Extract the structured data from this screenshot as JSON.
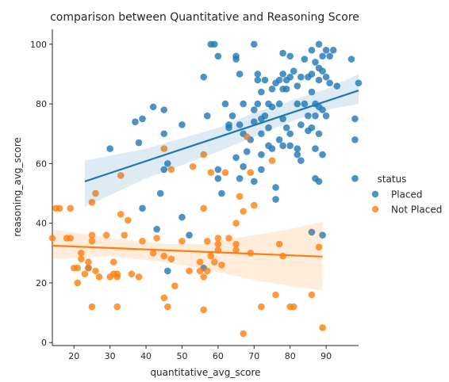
{
  "chart_data": {
    "type": "scatter",
    "title": "comparison between Quantitative and Reasoning Score",
    "xlabel": "quantitative_avg_score",
    "ylabel": "reasoning_avg_score",
    "xlim": [
      14,
      99
    ],
    "ylim": [
      -1,
      105
    ],
    "xticks": [
      20,
      30,
      40,
      50,
      60,
      70,
      80,
      90
    ],
    "yticks": [
      0,
      20,
      40,
      60,
      80,
      100
    ],
    "grid": false,
    "legend": {
      "title": "status",
      "placement": "right"
    },
    "series": [
      {
        "name": "Placed",
        "color": "#1f77b4",
        "regression": {
          "x0": 23,
          "y0": 54,
          "x1": 99,
          "y1": 84.5
        },
        "ci_band": {
          "x": [
            23,
            40,
            60,
            70,
            80,
            90,
            99
          ],
          "upper": [
            61,
            65,
            72,
            77,
            81,
            85,
            90
          ],
          "lower": [
            45.5,
            55,
            64,
            69,
            74,
            78,
            80
          ]
        },
        "points": [
          [
            30,
            65
          ],
          [
            38,
            67
          ],
          [
            39,
            75
          ],
          [
            37,
            74
          ],
          [
            39,
            45
          ],
          [
            42,
            79
          ],
          [
            44,
            50
          ],
          [
            45,
            58
          ],
          [
            45,
            78
          ],
          [
            46,
            60
          ],
          [
            45,
            70
          ],
          [
            46,
            24
          ],
          [
            50,
            73
          ],
          [
            50,
            42
          ],
          [
            52,
            36
          ],
          [
            56,
            89
          ],
          [
            56,
            25
          ],
          [
            58,
            100
          ],
          [
            59,
            100
          ],
          [
            60,
            96
          ],
          [
            60,
            58
          ],
          [
            60,
            55
          ],
          [
            61,
            50
          ],
          [
            62,
            80
          ],
          [
            63,
            72
          ],
          [
            63,
            73
          ],
          [
            64,
            76
          ],
          [
            65,
            96
          ],
          [
            65,
            62
          ],
          [
            65,
            95
          ],
          [
            66,
            90
          ],
          [
            66,
            73
          ],
          [
            67,
            80
          ],
          [
            66,
            55
          ],
          [
            67,
            70
          ],
          [
            67,
            59
          ],
          [
            68,
            64
          ],
          [
            69,
            68
          ],
          [
            70,
            100
          ],
          [
            70,
            78
          ],
          [
            70,
            74
          ],
          [
            70,
            54
          ],
          [
            71,
            90
          ],
          [
            71,
            88
          ],
          [
            71,
            80
          ],
          [
            72,
            84
          ],
          [
            72,
            70
          ],
          [
            72,
            63
          ],
          [
            72,
            58
          ],
          [
            73,
            88
          ],
          [
            73,
            76
          ],
          [
            74,
            80
          ],
          [
            74,
            72
          ],
          [
            74,
            66
          ],
          [
            75,
            85
          ],
          [
            75,
            79
          ],
          [
            75,
            65
          ],
          [
            76,
            52
          ],
          [
            76,
            87
          ],
          [
            77,
            88
          ],
          [
            77,
            80
          ],
          [
            77,
            68
          ],
          [
            78,
            97
          ],
          [
            78,
            90
          ],
          [
            78,
            85
          ],
          [
            78,
            75
          ],
          [
            78,
            66
          ],
          [
            79,
            88
          ],
          [
            79,
            85
          ],
          [
            79,
            72
          ],
          [
            80,
            96
          ],
          [
            80,
            70
          ],
          [
            80,
            89
          ],
          [
            80,
            66
          ],
          [
            81,
            91
          ],
          [
            82,
            86
          ],
          [
            82,
            80
          ],
          [
            82,
            65
          ],
          [
            82,
            63
          ],
          [
            83,
            89
          ],
          [
            83,
            73
          ],
          [
            84,
            95
          ],
          [
            84,
            80
          ],
          [
            85,
            89
          ],
          [
            85,
            76
          ],
          [
            85,
            71
          ],
          [
            86,
            98
          ],
          [
            86,
            90
          ],
          [
            86,
            84
          ],
          [
            86,
            72
          ],
          [
            87,
            94
          ],
          [
            87,
            80
          ],
          [
            87,
            76
          ],
          [
            87,
            65
          ],
          [
            87,
            55
          ],
          [
            88,
            100
          ],
          [
            88,
            92
          ],
          [
            88,
            88
          ],
          [
            88,
            79
          ],
          [
            88,
            70
          ],
          [
            88,
            54
          ],
          [
            89,
            96
          ],
          [
            89,
            91
          ],
          [
            89,
            78
          ],
          [
            89,
            63
          ],
          [
            89,
            36
          ],
          [
            90,
            98
          ],
          [
            90,
            89
          ],
          [
            90,
            76
          ],
          [
            91,
            96
          ],
          [
            91,
            87
          ],
          [
            92,
            98
          ],
          [
            93,
            86
          ],
          [
            97,
            95
          ],
          [
            98,
            75
          ],
          [
            98,
            68
          ],
          [
            98,
            55
          ],
          [
            99,
            87
          ],
          [
            24,
            25
          ],
          [
            43,
            38
          ],
          [
            57,
            76
          ],
          [
            72,
            75
          ],
          [
            76,
            48
          ],
          [
            83,
            61
          ],
          [
            86,
            37
          ]
        ]
      },
      {
        "name": "Not Placed",
        "color": "#ff7f0e",
        "regression": {
          "x0": 14,
          "y0": 32.5,
          "x1": 89,
          "y1": 28.8
        },
        "ci_band": {
          "x": [
            14,
            30,
            45,
            55,
            70,
            80,
            89
          ],
          "upper": [
            38,
            35,
            33,
            33,
            36,
            38,
            40.5
          ],
          "lower": [
            28,
            29,
            27,
            25,
            21,
            19,
            17.5
          ]
        },
        "points": [
          [
            14,
            35
          ],
          [
            15,
            45
          ],
          [
            16,
            45
          ],
          [
            18,
            35
          ],
          [
            19,
            35
          ],
          [
            19,
            45
          ],
          [
            20,
            25
          ],
          [
            21,
            20
          ],
          [
            21,
            25
          ],
          [
            22,
            30
          ],
          [
            22,
            28
          ],
          [
            23,
            23
          ],
          [
            24,
            27
          ],
          [
            24,
            25
          ],
          [
            25,
            36
          ],
          [
            25,
            47
          ],
          [
            25,
            12
          ],
          [
            26,
            50
          ],
          [
            26,
            24
          ],
          [
            27,
            22
          ],
          [
            29,
            36
          ],
          [
            30,
            22
          ],
          [
            31,
            27
          ],
          [
            31,
            23
          ],
          [
            32,
            12
          ],
          [
            32,
            23
          ],
          [
            32,
            22
          ],
          [
            33,
            43
          ],
          [
            33,
            56
          ],
          [
            34,
            36
          ],
          [
            35,
            41
          ],
          [
            36,
            23
          ],
          [
            38,
            22
          ],
          [
            39,
            34
          ],
          [
            42,
            30
          ],
          [
            43,
            35
          ],
          [
            45,
            15
          ],
          [
            45,
            29
          ],
          [
            45,
            65
          ],
          [
            46,
            12
          ],
          [
            47,
            28
          ],
          [
            47,
            58
          ],
          [
            48,
            19
          ],
          [
            50,
            34
          ],
          [
            52,
            24
          ],
          [
            53,
            59
          ],
          [
            55,
            27
          ],
          [
            55,
            24
          ],
          [
            56,
            11
          ],
          [
            56,
            45
          ],
          [
            56,
            22
          ],
          [
            56,
            63
          ],
          [
            57,
            34
          ],
          [
            57,
            24
          ],
          [
            58,
            29
          ],
          [
            58,
            57
          ],
          [
            59,
            27
          ],
          [
            60,
            35
          ],
          [
            60,
            33
          ],
          [
            60,
            31
          ],
          [
            61,
            26
          ],
          [
            62,
            57
          ],
          [
            63,
            35
          ],
          [
            65,
            33
          ],
          [
            65,
            40
          ],
          [
            65,
            31
          ],
          [
            66,
            49
          ],
          [
            67,
            3
          ],
          [
            67,
            44
          ],
          [
            68,
            69
          ],
          [
            69,
            57
          ],
          [
            69,
            30
          ],
          [
            70,
            46
          ],
          [
            72,
            12
          ],
          [
            75,
            61
          ],
          [
            76,
            16
          ],
          [
            77,
            33
          ],
          [
            78,
            29
          ],
          [
            80,
            12
          ],
          [
            81,
            12
          ],
          [
            86,
            16
          ],
          [
            88,
            32
          ],
          [
            89,
            5
          ],
          [
            25,
            34
          ]
        ]
      }
    ]
  }
}
